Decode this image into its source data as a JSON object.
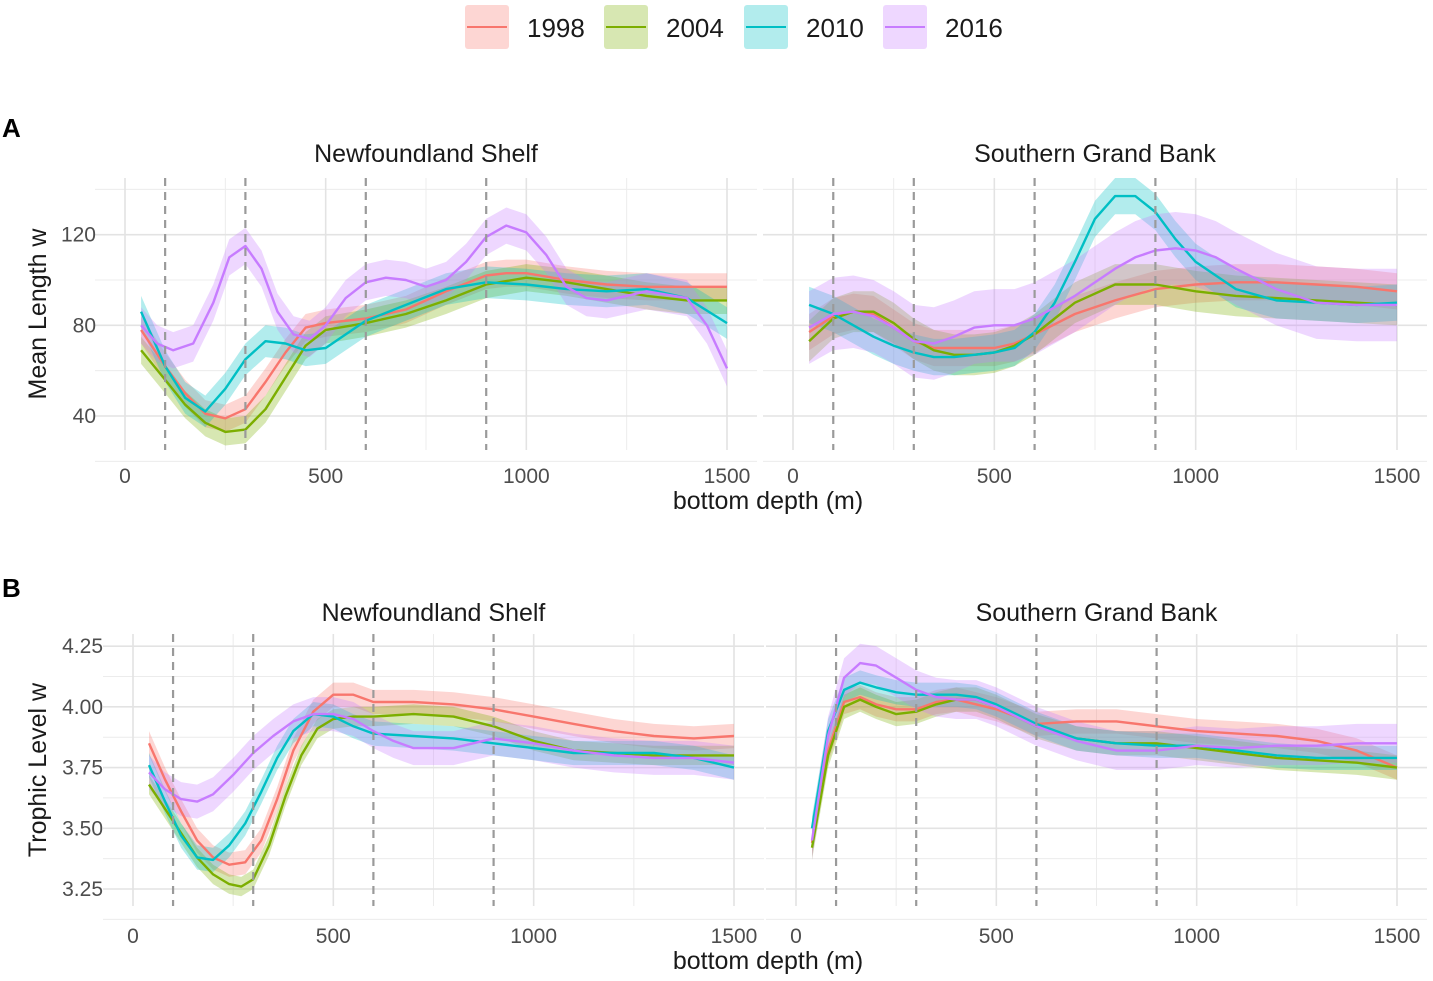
{
  "legend": {
    "items": [
      {
        "label": "1998",
        "color": "#F8766D"
      },
      {
        "label": "2004",
        "color": "#7CAE00"
      },
      {
        "label": "2010",
        "color": "#00BFC4"
      },
      {
        "label": "2016",
        "color": "#C77CFF"
      }
    ]
  },
  "chart_data": [
    {
      "type": "line",
      "panel_tag": "A",
      "ylabel": "Mean Length w",
      "xlabel": "bottom depth (m)",
      "xlim": [
        0,
        1500
      ],
      "x_ticks": [
        "0",
        "500",
        "1000",
        "1500"
      ],
      "ylim": [
        25,
        145
      ],
      "y_ticks": [
        "40",
        "80",
        "120"
      ],
      "reference_lines_x": [
        100,
        300,
        600,
        900
      ],
      "facets": [
        {
          "title": "Newfoundland Shelf",
          "series": [
            {
              "name": "1998",
              "band": 6,
              "x": [
                40,
                100,
                150,
                200,
                250,
                300,
                350,
                400,
                450,
                500,
                600,
                700,
                800,
                900,
                950,
                1000,
                1100,
                1200,
                1300,
                1400,
                1500
              ],
              "y": [
                78,
                62,
                50,
                41,
                39,
                43,
                55,
                68,
                79,
                81,
                83,
                87,
                95,
                102,
                103,
                103,
                100,
                98,
                97,
                97,
                97
              ]
            },
            {
              "name": "2004",
              "band": 6,
              "x": [
                40,
                100,
                150,
                200,
                250,
                300,
                350,
                400,
                450,
                500,
                600,
                700,
                800,
                900,
                1000,
                1100,
                1200,
                1300,
                1400,
                1500
              ],
              "y": [
                69,
                56,
                45,
                37,
                33,
                34,
                43,
                57,
                71,
                78,
                81,
                85,
                91,
                98,
                101,
                99,
                96,
                93,
                91,
                91
              ]
            },
            {
              "name": "2010",
              "band": 7,
              "x": [
                40,
                100,
                150,
                200,
                250,
                300,
                350,
                400,
                450,
                500,
                550,
                600,
                700,
                800,
                900,
                1000,
                1100,
                1200,
                1300,
                1400,
                1500
              ],
              "y": [
                86,
                62,
                48,
                42,
                52,
                65,
                73,
                72,
                69,
                70,
                76,
                82,
                89,
                96,
                99,
                98,
                96,
                95,
                96,
                92,
                81
              ]
            },
            {
              "name": "2016",
              "band": 8,
              "x": [
                40,
                80,
                120,
                170,
                220,
                260,
                300,
                340,
                380,
                420,
                460,
                500,
                550,
                600,
                650,
                700,
                750,
                800,
                850,
                900,
                950,
                1000,
                1050,
                1100,
                1150,
                1200,
                1300,
                1400,
                1450,
                1500
              ],
              "y": [
                80,
                72,
                69,
                72,
                90,
                110,
                115,
                105,
                86,
                76,
                74,
                80,
                92,
                99,
                101,
                100,
                97,
                100,
                108,
                119,
                124,
                121,
                111,
                97,
                92,
                91,
                95,
                92,
                80,
                61
              ]
            }
          ]
        },
        {
          "title": "Southern Grand Bank",
          "series": [
            {
              "name": "1998",
              "band": 8,
              "x": [
                40,
                100,
                150,
                200,
                250,
                300,
                350,
                400,
                450,
                500,
                550,
                600,
                700,
                800,
                900,
                1000,
                1100,
                1200,
                1300,
                1400,
                1500
              ],
              "y": [
                77,
                84,
                86,
                85,
                79,
                73,
                70,
                70,
                70,
                70,
                72,
                76,
                85,
                91,
                96,
                98,
                99,
                99,
                98,
                97,
                95
              ]
            },
            {
              "name": "2004",
              "band": 9,
              "x": [
                40,
                100,
                150,
                200,
                250,
                300,
                350,
                400,
                450,
                500,
                550,
                600,
                650,
                700,
                800,
                900,
                1000,
                1100,
                1200,
                1300,
                1400,
                1500
              ],
              "y": [
                73,
                83,
                86,
                86,
                81,
                74,
                69,
                67,
                67,
                68,
                71,
                76,
                83,
                90,
                98,
                98,
                95,
                93,
                92,
                91,
                90,
                89
              ]
            },
            {
              "name": "2010",
              "band": 8,
              "x": [
                40,
                100,
                150,
                200,
                250,
                300,
                350,
                400,
                450,
                500,
                550,
                600,
                650,
                700,
                750,
                800,
                850,
                900,
                950,
                1000,
                1100,
                1200,
                1300,
                1400,
                1500
              ],
              "y": [
                89,
                85,
                80,
                75,
                71,
                68,
                66,
                66,
                67,
                68,
                70,
                77,
                90,
                108,
                127,
                137,
                137,
                130,
                118,
                108,
                96,
                91,
                90,
                89,
                90
              ]
            },
            {
              "name": "2016",
              "band": 16,
              "x": [
                40,
                100,
                150,
                200,
                250,
                300,
                350,
                400,
                450,
                500,
                550,
                600,
                700,
                800,
                850,
                900,
                950,
                1000,
                1050,
                1100,
                1200,
                1300,
                1400,
                1500
              ],
              "y": [
                79,
                85,
                86,
                84,
                79,
                73,
                72,
                75,
                79,
                80,
                80,
                83,
                93,
                105,
                110,
                113,
                114,
                113,
                110,
                105,
                96,
                90,
                89,
                89
              ]
            }
          ]
        }
      ]
    },
    {
      "type": "line",
      "panel_tag": "B",
      "ylabel": "Trophic Level w",
      "xlabel": "bottom depth (m)",
      "xlim": [
        0,
        1500
      ],
      "x_ticks": [
        "0",
        "500",
        "1000",
        "1500"
      ],
      "ylim": [
        3.18,
        4.3
      ],
      "y_ticks": [
        "3.25",
        "3.50",
        "3.75",
        "4.00",
        "4.25"
      ],
      "reference_lines_x": [
        100,
        300,
        600,
        900
      ],
      "facets": [
        {
          "title": "Newfoundland Shelf",
          "series": [
            {
              "name": "1998",
              "band": 0.05,
              "x": [
                40,
                80,
                120,
                160,
                200,
                240,
                280,
                320,
                360,
                400,
                450,
                500,
                550,
                600,
                700,
                800,
                900,
                1000,
                1100,
                1200,
                1300,
                1400,
                1500
              ],
              "y": [
                3.85,
                3.7,
                3.57,
                3.45,
                3.38,
                3.35,
                3.36,
                3.45,
                3.62,
                3.82,
                3.98,
                4.05,
                4.05,
                4.02,
                4.02,
                4.01,
                3.99,
                3.96,
                3.93,
                3.9,
                3.88,
                3.87,
                3.88
              ]
            },
            {
              "name": "2004",
              "band": 0.04,
              "x": [
                40,
                80,
                120,
                160,
                200,
                240,
                270,
                300,
                340,
                380,
                420,
                460,
                500,
                550,
                600,
                700,
                800,
                900,
                1000,
                1100,
                1200,
                1300,
                1400,
                1500
              ],
              "y": [
                3.68,
                3.58,
                3.48,
                3.38,
                3.31,
                3.27,
                3.26,
                3.29,
                3.43,
                3.63,
                3.8,
                3.91,
                3.95,
                3.96,
                3.96,
                3.97,
                3.96,
                3.92,
                3.86,
                3.82,
                3.81,
                3.8,
                3.8,
                3.8
              ]
            },
            {
              "name": "2010",
              "band": 0.05,
              "x": [
                40,
                80,
                120,
                160,
                200,
                240,
                280,
                320,
                360,
                400,
                450,
                500,
                550,
                600,
                700,
                800,
                900,
                1000,
                1100,
                1200,
                1300,
                1400,
                1500
              ],
              "y": [
                3.76,
                3.61,
                3.47,
                3.38,
                3.37,
                3.43,
                3.52,
                3.65,
                3.79,
                3.9,
                3.97,
                3.96,
                3.92,
                3.89,
                3.88,
                3.87,
                3.85,
                3.83,
                3.81,
                3.81,
                3.81,
                3.79,
                3.75
              ]
            },
            {
              "name": "2016",
              "band": 0.07,
              "x": [
                40,
                80,
                120,
                160,
                200,
                250,
                300,
                350,
                400,
                450,
                500,
                550,
                600,
                650,
                700,
                800,
                900,
                1000,
                1100,
                1200,
                1300,
                1400,
                1500
              ],
              "y": [
                3.73,
                3.66,
                3.62,
                3.61,
                3.64,
                3.72,
                3.81,
                3.88,
                3.94,
                3.97,
                3.97,
                3.95,
                3.9,
                3.86,
                3.83,
                3.83,
                3.87,
                3.85,
                3.82,
                3.8,
                3.79,
                3.79,
                3.77
              ]
            }
          ]
        },
        {
          "title": "Southern Grand Bank",
          "series": [
            {
              "name": "1998",
              "band": 0.05,
              "x": [
                40,
                80,
                120,
                160,
                200,
                250,
                300,
                350,
                400,
                450,
                500,
                550,
                600,
                700,
                800,
                900,
                1000,
                1100,
                1200,
                1300,
                1400,
                1500
              ],
              "y": [
                3.44,
                3.82,
                4.02,
                4.04,
                4.01,
                3.99,
                3.99,
                4.02,
                4.03,
                4.01,
                3.99,
                3.96,
                3.93,
                3.94,
                3.94,
                3.92,
                3.9,
                3.89,
                3.88,
                3.86,
                3.82,
                3.75
              ]
            },
            {
              "name": "2004",
              "band": 0.05,
              "x": [
                40,
                80,
                120,
                160,
                200,
                250,
                300,
                350,
                400,
                450,
                500,
                550,
                600,
                700,
                800,
                900,
                1000,
                1100,
                1200,
                1300,
                1400,
                1500
              ],
              "y": [
                3.42,
                3.8,
                4.0,
                4.03,
                4.0,
                3.97,
                3.98,
                4.01,
                4.03,
                4.03,
                4.0,
                3.96,
                3.92,
                3.87,
                3.85,
                3.85,
                3.83,
                3.81,
                3.79,
                3.78,
                3.77,
                3.75
              ]
            },
            {
              "name": "2010",
              "band": 0.05,
              "x": [
                40,
                80,
                120,
                160,
                200,
                250,
                300,
                350,
                400,
                450,
                500,
                550,
                600,
                700,
                800,
                900,
                1000,
                1100,
                1200,
                1300,
                1400,
                1500
              ],
              "y": [
                3.5,
                3.9,
                4.07,
                4.1,
                4.08,
                4.06,
                4.05,
                4.05,
                4.05,
                4.04,
                4.01,
                3.97,
                3.93,
                3.87,
                3.85,
                3.84,
                3.84,
                3.82,
                3.8,
                3.79,
                3.79,
                3.79
              ]
            },
            {
              "name": "2016",
              "band": 0.08,
              "x": [
                40,
                80,
                120,
                160,
                200,
                250,
                300,
                350,
                400,
                450,
                500,
                550,
                600,
                700,
                800,
                900,
                1000,
                1100,
                1200,
                1300,
                1400,
                1500
              ],
              "y": [
                3.45,
                3.88,
                4.12,
                4.18,
                4.17,
                4.12,
                4.07,
                4.04,
                4.03,
                4.03,
                4.0,
                3.96,
                3.92,
                3.86,
                3.82,
                3.82,
                3.84,
                3.83,
                3.84,
                3.84,
                3.85,
                3.85
              ]
            }
          ]
        }
      ]
    }
  ]
}
